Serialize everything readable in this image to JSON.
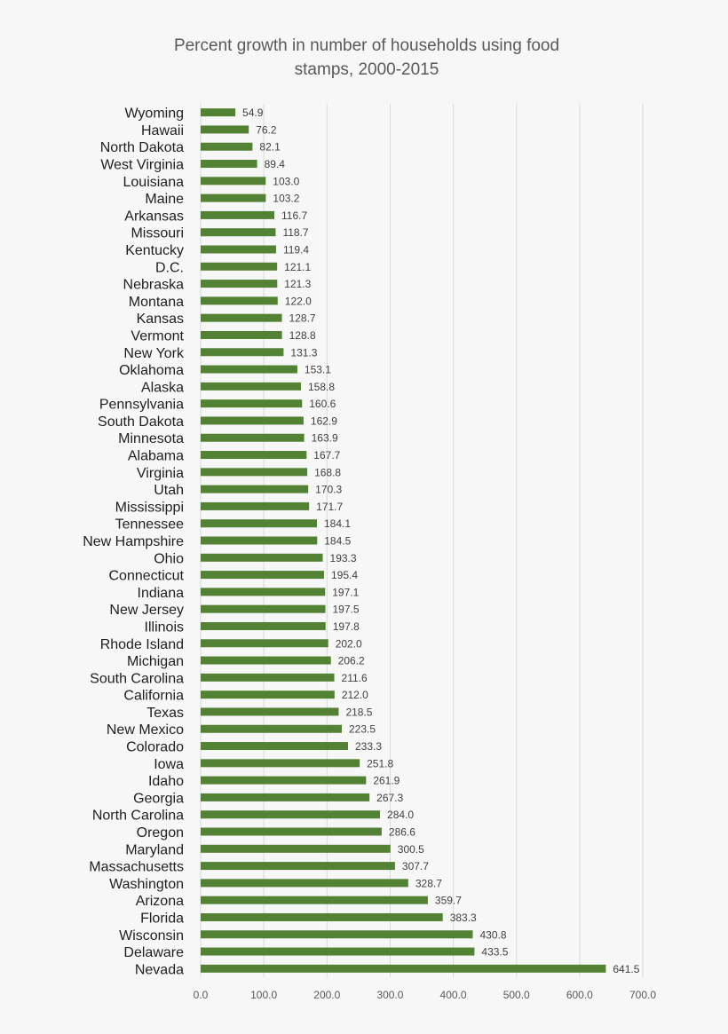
{
  "chart_data": {
    "type": "bar",
    "orientation": "horizontal",
    "title_lines": [
      "Percent growth in number of households using food",
      "stamps, 2000-2015"
    ],
    "xlabel": "",
    "ylabel": "",
    "xlim": [
      0,
      700
    ],
    "x_ticks": [
      "0.0",
      "100.0",
      "200.0",
      "300.0",
      "400.0",
      "500.0",
      "600.0",
      "700.0"
    ],
    "grid": true,
    "legend": "none",
    "bar_color": "#548235",
    "categories": [
      "Wyoming",
      "Hawaii",
      "North Dakota",
      "West Virginia",
      "Louisiana",
      "Maine",
      "Arkansas",
      "Missouri",
      "Kentucky",
      "D.C.",
      "Nebraska",
      "Montana",
      "Kansas",
      "Vermont",
      "New York",
      "Oklahoma",
      "Alaska",
      "Pennsylvania",
      "South Dakota",
      "Minnesota",
      "Alabama",
      "Virginia",
      "Utah",
      "Mississippi",
      "Tennessee",
      "New Hampshire",
      "Ohio",
      "Connecticut",
      "Indiana",
      "New Jersey",
      "Illinois",
      "Rhode Island",
      "Michigan",
      "South Carolina",
      "California",
      "Texas",
      "New Mexico",
      "Colorado",
      "Iowa",
      "Idaho",
      "Georgia",
      "North Carolina",
      "Oregon",
      "Maryland",
      "Massachusetts",
      "Washington",
      "Arizona",
      "Florida",
      "Wisconsin",
      "Delaware",
      "Nevada"
    ],
    "values": [
      54.9,
      76.2,
      82.1,
      89.4,
      103.0,
      103.2,
      116.7,
      118.7,
      119.4,
      121.1,
      121.3,
      122.0,
      128.7,
      128.8,
      131.3,
      153.1,
      158.8,
      160.6,
      162.9,
      163.9,
      167.7,
      168.8,
      170.3,
      171.7,
      184.1,
      184.5,
      193.3,
      195.4,
      197.1,
      197.5,
      197.8,
      202.0,
      206.2,
      211.6,
      212.0,
      218.5,
      223.5,
      233.3,
      251.8,
      261.9,
      267.3,
      284.0,
      286.6,
      300.5,
      307.7,
      328.7,
      359.7,
      383.3,
      430.8,
      433.5,
      641.5
    ],
    "value_labels": [
      "54.9",
      "76.2",
      "82.1",
      "89.4",
      "103.0",
      "103.2",
      "116.7",
      "118.7",
      "119.4",
      "121.1",
      "121.3",
      "122.0",
      "128.7",
      "128.8",
      "131.3",
      "153.1",
      "158.8",
      "160.6",
      "162.9",
      "163.9",
      "167.7",
      "168.8",
      "170.3",
      "171.7",
      "184.1",
      "184.5",
      "193.3",
      "195.4",
      "197.1",
      "197.5",
      "197.8",
      "202.0",
      "206.2",
      "211.6",
      "212.0",
      "218.5",
      "223.5",
      "233.3",
      "251.8",
      "261.9",
      "267.3",
      "284.0",
      "286.6",
      "300.5",
      "307.7",
      "328.7",
      "359.7",
      "383.3",
      "430.8",
      "433.5",
      "641.5"
    ]
  }
}
